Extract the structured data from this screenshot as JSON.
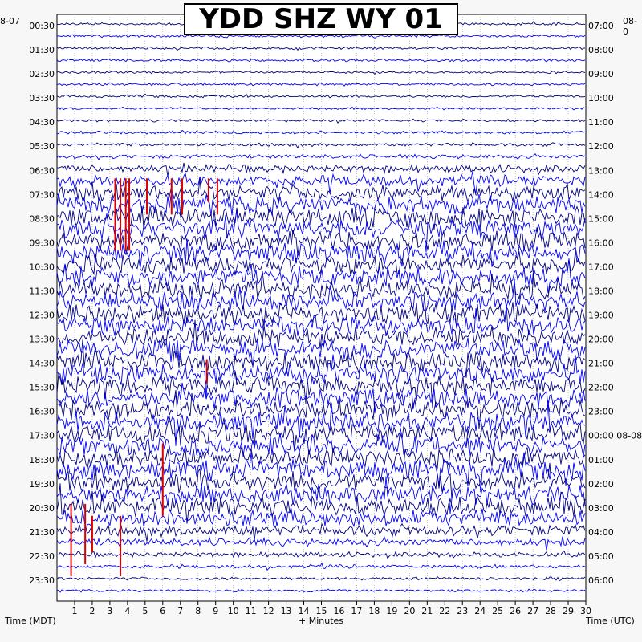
{
  "chart_data": {
    "type": "line",
    "title": "YDD SHZ WY 01",
    "left_corner_label": "8-07",
    "right_corner_label": "08-0",
    "xlabel": "+ Minutes",
    "left_axis_label": "Time (MDT)",
    "right_axis_label": "Time (UTC)",
    "x_range": [
      0,
      30
    ],
    "x_ticks": [
      1,
      2,
      3,
      4,
      5,
      6,
      7,
      8,
      9,
      10,
      11,
      12,
      13,
      14,
      15,
      16,
      17,
      18,
      19,
      20,
      21,
      22,
      23,
      24,
      25,
      26,
      27,
      28,
      29,
      30
    ],
    "rows_per_hour": 2,
    "row_count": 48,
    "left_time_labels": [
      "00:30",
      "01:30",
      "02:30",
      "03:30",
      "04:30",
      "05:30",
      "06:30",
      "07:30",
      "08:30",
      "09:30",
      "10:30",
      "11:30",
      "12:30",
      "13:30",
      "14:30",
      "15:30",
      "16:30",
      "17:30",
      "18:30",
      "19:30",
      "20:30",
      "21:30",
      "22:30",
      "23:30"
    ],
    "right_time_labels": [
      "07:00",
      "08:00",
      "09:00",
      "10:00",
      "11:00",
      "12:00",
      "13:00",
      "14:00",
      "15:00",
      "16:00",
      "17:00",
      "18:00",
      "19:00",
      "20:00",
      "21:00",
      "22:00",
      "23:00",
      "00:00 08-08",
      "01:00",
      "02:00",
      "03:00",
      "04:00",
      "05:00",
      "06:00"
    ],
    "row_activity_levels": [
      0.05,
      0.06,
      0.05,
      0.06,
      0.04,
      0.05,
      0.05,
      0.05,
      0.06,
      0.08,
      0.1,
      0.14,
      0.35,
      0.55,
      0.85,
      0.95,
      1,
      1,
      1,
      1,
      1,
      1,
      1,
      1,
      1,
      1,
      1,
      1,
      1,
      1,
      1,
      1,
      1,
      1,
      1,
      1,
      1,
      1,
      1,
      1,
      1,
      0.85,
      0.55,
      0.35,
      0.2,
      0.12,
      0.08,
      0.06
    ],
    "trace_colors": [
      "#00007a",
      "#0000ee"
    ],
    "clip_color": "#dd0000",
    "grid": true
  }
}
